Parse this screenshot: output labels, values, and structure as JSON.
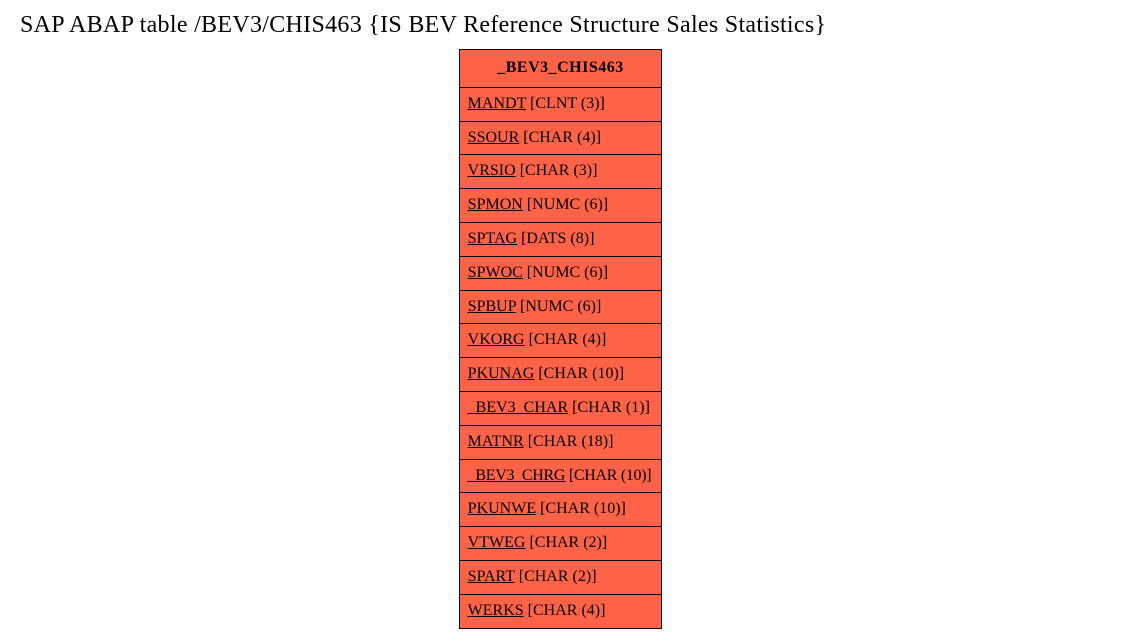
{
  "title": "SAP ABAP table /BEV3/CHIS463 {IS BEV  Reference Structure Sales Statistics}",
  "table": {
    "header": "_BEV3_CHIS463",
    "header_bg": "#ff6347",
    "row_bg": "#ff6347",
    "border_color": "#000000",
    "fields": [
      {
        "name": "MANDT",
        "type": " [CLNT (3)]"
      },
      {
        "name": "SSOUR",
        "type": " [CHAR (4)]"
      },
      {
        "name": "VRSIO",
        "type": " [CHAR (3)]"
      },
      {
        "name": "SPMON",
        "type": " [NUMC (6)]"
      },
      {
        "name": "SPTAG",
        "type": " [DATS (8)]"
      },
      {
        "name": "SPWOC",
        "type": " [NUMC (6)]"
      },
      {
        "name": "SPBUP",
        "type": " [NUMC (6)]"
      },
      {
        "name": "VKORG",
        "type": " [CHAR (4)]"
      },
      {
        "name": "PKUNAG",
        "type": " [CHAR (10)]"
      },
      {
        "name": "_BEV3_CHAR",
        "type": " [CHAR (1)]"
      },
      {
        "name": "MATNR",
        "type": " [CHAR (18)]"
      },
      {
        "name": "_BEV3_CHRG",
        "type": " [CHAR (10)]"
      },
      {
        "name": "PKUNWE",
        "type": " [CHAR (10)]"
      },
      {
        "name": "VTWEG",
        "type": " [CHAR (2)]"
      },
      {
        "name": "SPART",
        "type": " [CHAR (2)]"
      },
      {
        "name": "WERKS",
        "type": " [CHAR (4)]"
      }
    ]
  }
}
